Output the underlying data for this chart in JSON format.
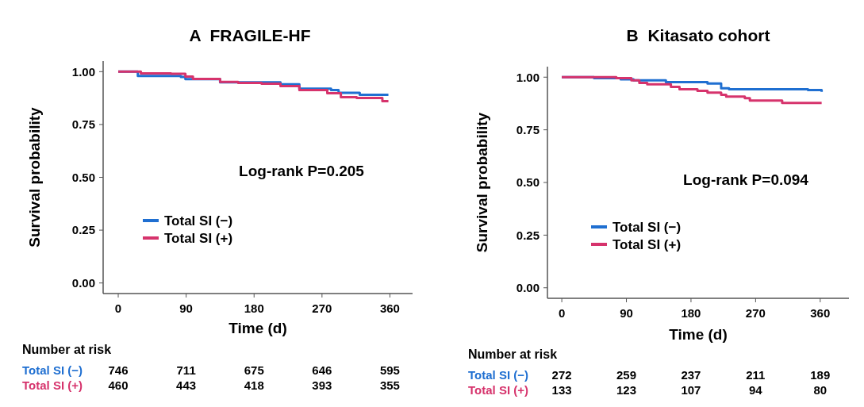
{
  "chart_data": [
    {
      "type": "step",
      "title": "A  FRAGILE-HF",
      "xlabel": "Time (d)",
      "ylabel": "Survival probability",
      "xlim": [
        -20,
        390
      ],
      "xticks": [
        0,
        90,
        180,
        270,
        360
      ],
      "ylim": [
        -0.05,
        1.05
      ],
      "yticks": [
        {
          "value": 0,
          "label": "0.00"
        },
        {
          "value": 0.25,
          "label": "0.25"
        },
        {
          "value": 0.5,
          "label": "0.50"
        },
        {
          "value": 0.75,
          "label": "0.75"
        },
        {
          "value": 1,
          "label": "1.00"
        }
      ],
      "legend": "left",
      "grid": false,
      "series": [
        {
          "name": "Total SI (−)",
          "color": "#1f6fd1",
          "x": [
            0,
            26,
            83,
            89,
            135,
            215,
            240,
            282,
            292,
            320,
            358
          ],
          "values": [
            1.0,
            0.98,
            0.975,
            0.965,
            0.95,
            0.94,
            0.92,
            0.913,
            0.9,
            0.89,
            0.89
          ]
        },
        {
          "name": "Total SI (+)",
          "color": "#d6336c",
          "x": [
            0,
            30,
            70,
            89,
            99,
            135,
            159,
            190,
            215,
            240,
            277,
            295,
            316,
            350,
            358
          ],
          "values": [
            1.0,
            0.992,
            0.99,
            0.977,
            0.966,
            0.951,
            0.947,
            0.943,
            0.932,
            0.913,
            0.898,
            0.879,
            0.875,
            0.86,
            0.86
          ]
        }
      ],
      "annotations": [
        "Log-rank P=0.205",
        "Number at risk",
        "Total SI (−)",
        "746",
        "711",
        "675",
        "646",
        "595",
        "Total SI (+)",
        "460",
        "443",
        "418",
        "393",
        "355"
      ]
    },
    {
      "type": "step",
      "title": "B  Kitasato cohort",
      "xlabel": "Time (d)",
      "ylabel": "Survival probability",
      "xlim": [
        -20,
        400
      ],
      "xticks": [
        0,
        90,
        180,
        270,
        360
      ],
      "ylim": [
        -0.05,
        1.05
      ],
      "yticks": [
        {
          "value": 0,
          "label": "0.00"
        },
        {
          "value": 0.25,
          "label": "0.25"
        },
        {
          "value": 0.5,
          "label": "0.50"
        },
        {
          "value": 0.75,
          "label": "0.75"
        },
        {
          "value": 1,
          "label": "1.00"
        }
      ],
      "legend": "left",
      "grid": false,
      "series": [
        {
          "name": "Total SI (−)",
          "color": "#1f6fd1",
          "x": [
            0,
            45,
            82,
            100,
            145,
            203,
            222,
            233,
            343,
            362
          ],
          "values": [
            1.0,
            0.995,
            0.99,
            0.985,
            0.977,
            0.97,
            0.947,
            0.943,
            0.939,
            0.93
          ]
        },
        {
          "name": "Total SI (+)",
          "color": "#d6336c",
          "x": [
            0,
            76,
            97,
            108,
            119,
            152,
            164,
            189,
            203,
            222,
            229,
            255,
            262,
            307,
            362
          ],
          "values": [
            1.0,
            0.995,
            0.985,
            0.973,
            0.966,
            0.954,
            0.943,
            0.935,
            0.927,
            0.916,
            0.908,
            0.9,
            0.889,
            0.878,
            0.878
          ]
        }
      ],
      "annotations": [
        "Log-rank P=0.094",
        "Number at risk",
        "Total SI (−)",
        "272",
        "259",
        "237",
        "211",
        "189",
        "Total SI (+)",
        "133",
        "123",
        "107",
        "94",
        "80"
      ]
    }
  ]
}
